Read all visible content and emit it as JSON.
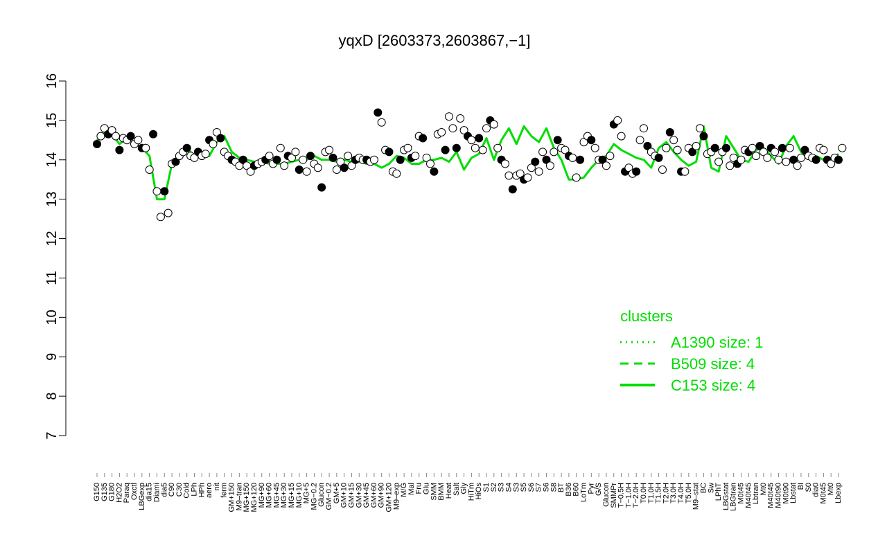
{
  "chart_data": {
    "type": "line",
    "title": "yqxD [2603373,2603867,−1]",
    "xlabel": "",
    "ylabel": "",
    "ylim": [
      7,
      16
    ],
    "yticks": [
      "7",
      "8",
      "9",
      "10",
      "11",
      "12",
      "13",
      "14",
      "15",
      "16"
    ],
    "grid": false,
    "xtick_labels": [
      "G150",
      "G135",
      "G180",
      "H2O2",
      "Paraq",
      "Oxctl",
      "LBGexp",
      "dia15",
      "Diami",
      "dia5",
      "C90",
      "C30",
      "Cold",
      "LPh",
      "HPh",
      "aero",
      "nit",
      "ferm",
      "GM+150",
      "M9–tran",
      "MG+150",
      "MG+120",
      "MG+90",
      "MG+60",
      "MG+45",
      "MG+30",
      "MG+15",
      "MG+10",
      "MG+5",
      "MG−0.2",
      "Glucon",
      "GM−0.2",
      "GM+5",
      "GM+10",
      "GM+15",
      "GM+30",
      "GM+45",
      "GM+60",
      "GM+90",
      "GM+120",
      "M9–exp",
      "M/G",
      "Mal",
      "Fru",
      "Glu",
      "SMM",
      "BMM",
      "Heat",
      "Salt",
      "Gly",
      "HiTm",
      "HiOs",
      "S1",
      "S2",
      "S3",
      "S4",
      "S3",
      "S5",
      "S6",
      "S7",
      "S6",
      "S8",
      "BT",
      "B36",
      "B60",
      "LoTm",
      "Pyr",
      "G/S",
      "Glucon",
      "SMMPr",
      "T−0.5H",
      "T−1.0H",
      "T−2.0H",
      "T0.0H",
      "T1.0H",
      "T1.5H",
      "T2.0H",
      "T3.0H",
      "T4.0H",
      "T5.0H",
      "M9–stat",
      "BC",
      "Sw",
      "LPhT",
      "LBGstat",
      "LBGtran",
      "M0t45",
      "M40t45",
      "Lbtran",
      "Mt0",
      "M40t45",
      "M40t90",
      "M0t90",
      "Lbstat",
      "BI",
      "S0",
      "dia0",
      "M0t45",
      "Mt0",
      "Lbexp"
    ],
    "series": [
      {
        "name": "",
        "line_style": "solid",
        "values": [
          14.5,
          14.7,
          14.65,
          14.4,
          14.55,
          14.45,
          14.3,
          14.1,
          13.0,
          13.0,
          13.9,
          14.15,
          14.3,
          14.1,
          14.1,
          14.1,
          14.45,
          14.6,
          14.2,
          14.05,
          14.0,
          13.95,
          13.95,
          13.9,
          13.9,
          13.9,
          13.95,
          14.0,
          14.0,
          14.1,
          14.0,
          14.0,
          13.95,
          14.0,
          13.95,
          13.95,
          13.9,
          13.9,
          13.8,
          13.9,
          14.1,
          14.05,
          13.9,
          13.9,
          14.0,
          14.0,
          14.05,
          13.95,
          14.2,
          13.75,
          14.05,
          14.15,
          14.55,
          14.0,
          14.5,
          14.8,
          14.4,
          14.85,
          14.6,
          14.45,
          14.8,
          14.3,
          14.0,
          13.5,
          13.5,
          13.55,
          13.8,
          14.0,
          14.1,
          14.4,
          14.25,
          14.15,
          14.05,
          14.0,
          13.8,
          14.3,
          14.45,
          14.2,
          14.0,
          13.85,
          13.95,
          14.85,
          13.8,
          13.7,
          14.6,
          14.3,
          14.0,
          13.95,
          14.25,
          14.3,
          14.1,
          13.9,
          14.35,
          14.6,
          14.2,
          14.05,
          14.1,
          14.0,
          13.95,
          14.15
        ]
      }
    ],
    "points": {
      "series": "",
      "x_index": [
        0.0,
        0.5,
        1.0,
        1.5,
        2.0,
        2.5,
        3.0,
        3.5,
        4.0,
        4.5,
        5.0,
        5.5,
        6.0,
        6.5,
        7.0,
        7.5,
        8.0,
        8.5,
        9.0,
        9.5,
        10.0,
        10.5,
        11.0,
        11.5,
        12.0,
        12.5,
        13.0,
        13.5,
        14.0,
        14.5,
        15.0,
        15.5,
        16.0,
        16.5,
        17.0,
        17.5,
        18.0,
        18.5,
        19.0,
        19.5,
        20.0,
        20.5,
        21.0,
        21.5,
        22.0,
        22.5,
        23.0,
        23.5,
        24.0,
        24.5,
        25.0,
        25.5,
        26.0,
        26.5,
        27.0,
        27.5,
        28.0,
        28.5,
        29.0,
        29.5,
        30.0,
        30.5,
        31.0,
        31.5,
        32.0,
        32.5,
        33.0,
        33.5,
        34.0,
        34.5,
        35.0,
        35.5,
        36.0,
        36.5,
        37.0,
        37.5,
        38.0,
        38.5,
        39.0,
        39.5,
        40.0,
        40.5,
        41.0,
        41.5,
        42.0,
        42.5,
        43.0,
        43.5,
        44.0,
        44.5,
        45.0,
        45.5,
        46.0,
        46.5,
        47.0,
        47.5,
        48.0,
        48.5,
        49.0,
        49.5,
        50.0,
        50.5,
        51.0,
        51.5,
        52.0,
        52.5,
        53.0,
        53.5,
        54.0,
        54.5,
        55.0,
        55.5,
        56.0,
        56.5,
        57.0,
        57.5,
        58.0,
        58.5,
        59.0,
        59.5,
        60.0,
        60.5,
        61.0,
        61.5,
        62.0,
        62.5,
        63.0,
        63.5,
        64.0,
        64.5,
        65.0,
        65.5,
        66.0,
        66.5,
        67.0,
        67.5,
        68.0,
        68.5,
        69.0,
        69.5,
        70.0,
        70.5,
        71.0,
        71.5,
        72.0,
        72.5,
        73.0,
        73.5,
        74.0,
        74.5,
        75.0,
        75.5,
        76.0,
        76.5,
        77.0,
        77.5,
        78.0,
        78.5,
        79.0,
        79.5,
        80.0,
        80.5,
        81.0,
        81.5,
        82.0,
        82.5,
        83.0,
        83.5,
        84.0,
        84.5,
        85.0,
        85.5,
        86.0,
        86.5,
        87.0,
        87.5,
        88.0,
        88.5,
        89.0,
        89.5,
        90.0,
        90.5,
        91.0,
        91.5,
        92.0,
        92.5,
        93.0,
        93.5,
        94.0,
        94.5,
        95.0,
        95.5,
        96.0,
        96.5,
        97.0,
        97.5,
        98.0,
        98.5,
        99.0,
        99.5
      ],
      "values": [
        14.4,
        14.6,
        14.8,
        14.65,
        14.75,
        14.6,
        14.25,
        14.55,
        14.5,
        14.6,
        14.4,
        14.5,
        14.3,
        14.3,
        13.75,
        14.65,
        13.2,
        12.55,
        13.2,
        12.65,
        13.9,
        13.95,
        14.1,
        14.2,
        14.3,
        14.1,
        14.05,
        14.2,
        14.1,
        14.15,
        14.5,
        14.4,
        14.7,
        14.55,
        14.2,
        14.1,
        14.0,
        13.95,
        13.85,
        14.0,
        13.85,
        13.7,
        13.85,
        13.9,
        13.95,
        14.0,
        14.1,
        13.9,
        14.0,
        14.3,
        13.85,
        14.1,
        14.05,
        14.2,
        13.75,
        14.0,
        13.7,
        14.1,
        13.9,
        13.8,
        13.3,
        14.2,
        14.25,
        14.05,
        13.75,
        13.95,
        13.8,
        14.1,
        13.85,
        14.0,
        14.05,
        14.0,
        14.0,
        13.95,
        14.0,
        15.2,
        14.95,
        14.25,
        14.2,
        13.7,
        13.65,
        14.0,
        14.25,
        14.3,
        14.05,
        14.1,
        14.6,
        14.55,
        14.05,
        13.9,
        13.7,
        14.65,
        14.7,
        14.25,
        15.1,
        14.8,
        14.3,
        15.05,
        14.75,
        14.6,
        14.5,
        14.3,
        14.55,
        14.25,
        14.8,
        15.0,
        14.9,
        14.3,
        14.0,
        13.9,
        13.6,
        13.25,
        13.6,
        13.65,
        13.5,
        13.55,
        13.8,
        13.95,
        13.7,
        14.2,
        14.0,
        13.85,
        14.2,
        14.5,
        14.3,
        14.25,
        14.1,
        14.05,
        13.55,
        14.0,
        14.45,
        14.6,
        14.5,
        14.3,
        14.0,
        14.0,
        13.85,
        14.1,
        14.9,
        15.0,
        14.6,
        13.7,
        13.8,
        13.65,
        13.7,
        14.5,
        14.8,
        14.35,
        14.2,
        14.1,
        14.05,
        13.75,
        14.3,
        14.7,
        14.5,
        14.25,
        13.7,
        13.7,
        14.3,
        14.2,
        14.35,
        14.8,
        14.6,
        14.15,
        14.2,
        14.3,
        13.95,
        14.2,
        14.3,
        13.85,
        14.05,
        13.9,
        14.0,
        14.25,
        14.2,
        14.3,
        14.1,
        14.35,
        14.2,
        14.05,
        14.3,
        14.2,
        14.0,
        14.3,
        13.95,
        14.3,
        14.0,
        13.85,
        14.05,
        14.25,
        14.1,
        14.05,
        14.0,
        14.3,
        14.25,
        14.0,
        13.9,
        14.05,
        14.0,
        14.3
      ]
    },
    "legend": {
      "title": "clusters",
      "placement": "bottom-right",
      "entries": [
        {
          "label": "A1390 size: 1",
          "line_style": "dotted"
        },
        {
          "label": "B509 size: 4",
          "line_style": "dashed"
        },
        {
          "label": "C153 size: 4",
          "line_style": "solid"
        }
      ]
    },
    "colors": {
      "series_line": "#00dd00",
      "point_stroke": "#000000",
      "point_fill": "#ffffff",
      "point_fill_dark": "#000000",
      "axis": "#000000",
      "legend_text": "#00dd00"
    }
  }
}
